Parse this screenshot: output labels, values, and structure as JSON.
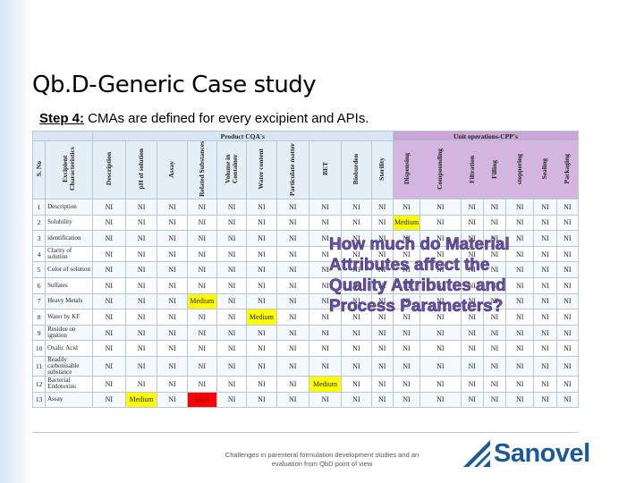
{
  "slide": {
    "title": "Qb.D-Generic Case study",
    "step_label": "Step 4:",
    "step_text": " CMAs are defined for every excipient and APIs.",
    "overlay_question": "How much do Material Attributes affect the Quality Attributes and Process Parameters?",
    "footer": "Challenges in parenteral formulation development studies and an evaluation from QbD point of view",
    "logo_text": "Sanovel"
  },
  "table": {
    "group_headers": {
      "cqa": "Product CQA's",
      "cpp": "Unit operations-CPP's"
    },
    "columns": [
      "S. No",
      "Excipient Characteristics",
      "Description",
      "pH of solution",
      "Assay",
      "Related Substances",
      "Volume in Container",
      "Water content",
      "Particulate matter",
      "BET",
      "Bioburden",
      "Sterility",
      "Dispensing",
      "Compounding",
      "Filtration",
      "Filling",
      "stoppering",
      "Sealing",
      "Packaging"
    ],
    "rows": [
      {
        "no": "1",
        "char": "Description",
        "cells": [
          "NI",
          "NI",
          "NI",
          "NI",
          "NI",
          "NI",
          "NI",
          "NI",
          "NI",
          "NI",
          "NI",
          "NI",
          "NI",
          "NI",
          "NI",
          "NI",
          "NI"
        ]
      },
      {
        "no": "2",
        "char": "Solubility",
        "cells": [
          "NI",
          "NI",
          "NI",
          "NI",
          "NI",
          "NI",
          "NI",
          "NI",
          "NI",
          "NI",
          "Medium",
          "NI",
          "NI",
          "NI",
          "NI",
          "NI",
          "NI"
        ]
      },
      {
        "no": "3",
        "char": "identification",
        "cells": [
          "NI",
          "NI",
          "NI",
          "NI",
          "NI",
          "NI",
          "NI",
          "NI",
          "NI",
          "NI",
          "NI",
          "NI",
          "NI",
          "NI",
          "NI",
          "NI",
          "NI"
        ]
      },
      {
        "no": "4",
        "char": "Clarity of solution",
        "cells": [
          "NI",
          "NI",
          "NI",
          "NI",
          "NI",
          "NI",
          "NI",
          "NI",
          "NI",
          "NI",
          "NI",
          "NI",
          "NI",
          "NI",
          "NI",
          "NI",
          "NI"
        ]
      },
      {
        "no": "5",
        "char": "Color of solution",
        "cells": [
          "NI",
          "NI",
          "NI",
          "NI",
          "NI",
          "NI",
          "NI",
          "NI",
          "NI",
          "NI",
          "NI",
          "NI",
          "NI",
          "NI",
          "NI",
          "NI",
          "NI"
        ]
      },
      {
        "no": "6",
        "char": "Sulfates",
        "cells": [
          "NI",
          "NI",
          "NI",
          "NI",
          "NI",
          "NI",
          "NI",
          "NI",
          "NI",
          "NI",
          "NI",
          "NI",
          "NI",
          "NI",
          "NI",
          "NI",
          "NI"
        ]
      },
      {
        "no": "7",
        "char": "Heavy Metals",
        "cells": [
          "NI",
          "NI",
          "NI",
          "Medium",
          "NI",
          "NI",
          "NI",
          "NI",
          "NI",
          "NI",
          "NI",
          "NI",
          "NI",
          "NI",
          "NI",
          "NI",
          "NI"
        ]
      },
      {
        "no": "8",
        "char": "Water by KF",
        "cells": [
          "NI",
          "NI",
          "NI",
          "NI",
          "NI",
          "Medium",
          "NI",
          "NI",
          "NI",
          "NI",
          "NI",
          "NI",
          "NI",
          "NI",
          "NI",
          "NI",
          "NI"
        ]
      },
      {
        "no": "9",
        "char": "Residue on ignition",
        "cells": [
          "NI",
          "NI",
          "NI",
          "NI",
          "NI",
          "NI",
          "NI",
          "NI",
          "NI",
          "NI",
          "NI",
          "NI",
          "NI",
          "NI",
          "NI",
          "NI",
          "NI"
        ]
      },
      {
        "no": "10",
        "char": "Oxalic Acid",
        "cells": [
          "NI",
          "NI",
          "NI",
          "NI",
          "NI",
          "NI",
          "NI",
          "NI",
          "NI",
          "NI",
          "NI",
          "NI",
          "NI",
          "NI",
          "NI",
          "NI",
          "NI"
        ]
      },
      {
        "no": "11",
        "char": "Readily carbonisable substance",
        "cells": [
          "NI",
          "NI",
          "NI",
          "NI",
          "NI",
          "NI",
          "NI",
          "NI",
          "NI",
          "NI",
          "NI",
          "NI",
          "NI",
          "NI",
          "NI",
          "NI",
          "NI"
        ]
      },
      {
        "no": "12",
        "char": "Bacterial Endotoxins",
        "cells": [
          "NI",
          "NI",
          "NI",
          "NI",
          "NI",
          "NI",
          "NI",
          "Medium",
          "NI",
          "NI",
          "NI",
          "NI",
          "NI",
          "NI",
          "NI",
          "NI",
          "NI"
        ]
      },
      {
        "no": "13",
        "char": "Assay",
        "cells": [
          "NI",
          "Medium",
          "NI",
          "High",
          "NI",
          "NI",
          "NI",
          "NI",
          "NI",
          "NI",
          "NI",
          "NI",
          "NI",
          "NI",
          "NI",
          "NI",
          "NI"
        ]
      }
    ]
  },
  "colors": {
    "medium": "#ffff00",
    "high": "#ff0000",
    "cqa_header": "#d7e6f2",
    "cpp_header": "#c9a6d6",
    "overlay_text": "#6b52a3",
    "logo": "#1c5a96"
  }
}
